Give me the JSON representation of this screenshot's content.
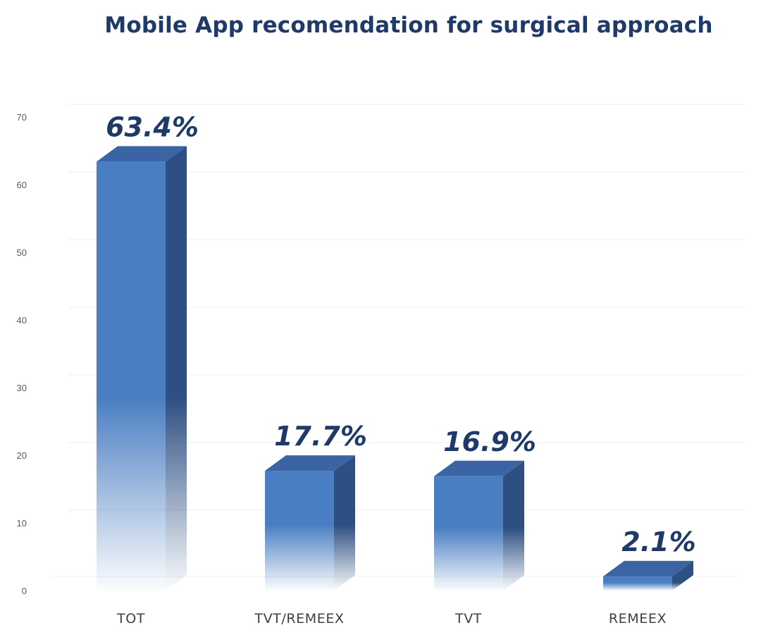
{
  "chart_data": {
    "type": "bar",
    "title": "Mobile App recomendation for surgical approach",
    "xlabel": "",
    "ylabel": "",
    "categories": [
      "TOT",
      "TVT/REMEEX",
      "TVT",
      "REMEEX"
    ],
    "values": [
      63.4,
      17.7,
      16.9,
      2.1
    ],
    "data_labels": [
      "63.4%",
      "17.7%",
      "16.9%",
      "2.1%"
    ],
    "ylim": [
      0,
      70
    ],
    "yticks": [
      "0",
      "10",
      "20",
      "30",
      "40",
      "50",
      "60",
      "70"
    ],
    "grid": true,
    "legend": "none",
    "style": "3d-column",
    "colors": {
      "bar_front": "#4a7ec2",
      "bar_side": "#2d4f82",
      "bar_top": "#3b64a4",
      "label": "#1f3a68",
      "grid": "#ececec"
    }
  }
}
